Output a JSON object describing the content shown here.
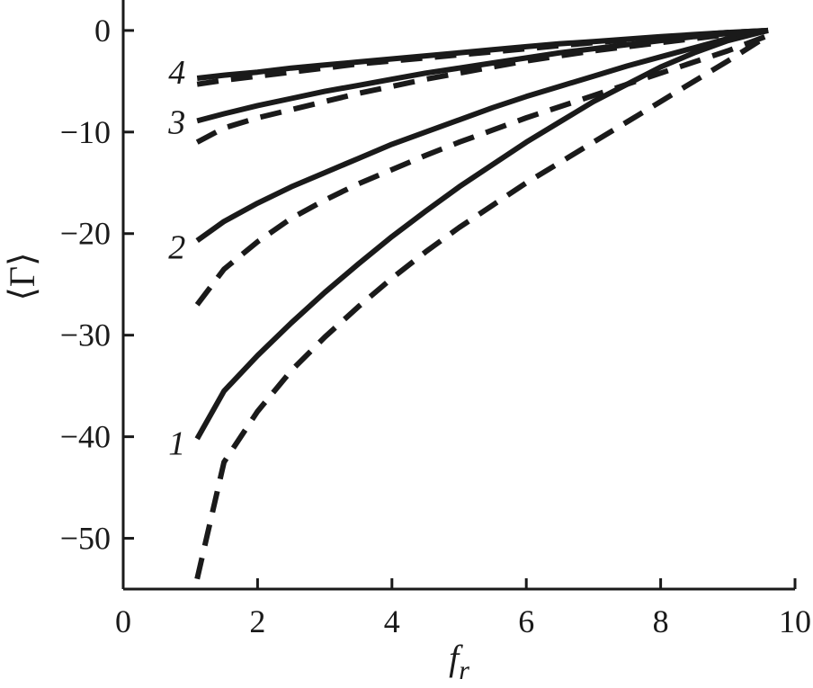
{
  "chart_data": {
    "type": "line",
    "xlabel": "f",
    "xlabel_sub": "r",
    "ylabel": "⟨Γ⟩",
    "xlim": [
      0,
      10
    ],
    "ylim": [
      -55,
      3
    ],
    "xticks": [
      "0",
      "2",
      "4",
      "6",
      "8",
      "10"
    ],
    "yticks": [
      "0",
      "−10",
      "−20",
      "−30",
      "−40",
      "−50"
    ],
    "x": [
      1.1,
      1.5,
      2,
      2.5,
      3,
      3.5,
      4,
      4.5,
      5,
      5.5,
      6,
      6.5,
      7,
      7.5,
      8,
      8.5,
      9,
      9.6
    ],
    "series": [
      {
        "name": "1",
        "style": "solid",
        "values": [
          -40.2,
          -35.5,
          -32,
          -28.8,
          -25.8,
          -23,
          -20.3,
          -17.8,
          -15.4,
          -13.2,
          -11,
          -9,
          -7,
          -5.3,
          -3.6,
          -2.2,
          -1.0,
          0
        ]
      },
      {
        "name": "1",
        "style": "dashed",
        "values": [
          -54,
          -42.5,
          -37.5,
          -33.5,
          -30.2,
          -27.2,
          -24.4,
          -21.8,
          -19.4,
          -17.2,
          -15,
          -13,
          -11,
          -9,
          -7,
          -5,
          -3,
          -0.5
        ]
      },
      {
        "name": "2",
        "style": "solid",
        "values": [
          -20.7,
          -18.8,
          -17,
          -15.4,
          -14,
          -12.6,
          -11.2,
          -10,
          -8.8,
          -7.6,
          -6.5,
          -5.5,
          -4.5,
          -3.5,
          -2.6,
          -1.7,
          -0.8,
          0
        ]
      },
      {
        "name": "2",
        "style": "dashed",
        "values": [
          -27,
          -23.5,
          -20.8,
          -18.5,
          -16.7,
          -15.1,
          -13.7,
          -12.3,
          -11,
          -9.8,
          -8.6,
          -7.5,
          -6.4,
          -5.3,
          -4.2,
          -3.1,
          -2,
          -0.5
        ]
      },
      {
        "name": "3",
        "style": "solid",
        "values": [
          -8.9,
          -8.2,
          -7.4,
          -6.7,
          -6.0,
          -5.4,
          -4.8,
          -4.2,
          -3.7,
          -3.2,
          -2.7,
          -2.2,
          -1.8,
          -1.4,
          -1.0,
          -0.6,
          -0.3,
          0
        ]
      },
      {
        "name": "3",
        "style": "dashed",
        "values": [
          -11,
          -9.6,
          -8.6,
          -7.8,
          -7.0,
          -6.2,
          -5.5,
          -4.8,
          -4.2,
          -3.6,
          -3.0,
          -2.5,
          -2.0,
          -1.6,
          -1.2,
          -0.8,
          -0.4,
          0
        ]
      },
      {
        "name": "4",
        "style": "solid",
        "values": [
          -4.7,
          -4.4,
          -4.1,
          -3.7,
          -3.4,
          -3.1,
          -2.8,
          -2.5,
          -2.2,
          -1.9,
          -1.6,
          -1.3,
          -1.1,
          -0.85,
          -0.6,
          -0.4,
          -0.2,
          0
        ]
      },
      {
        "name": "4",
        "style": "dashed",
        "values": [
          -5.3,
          -4.9,
          -4.5,
          -4.1,
          -3.7,
          -3.3,
          -3.0,
          -2.7,
          -2.4,
          -2.1,
          -1.8,
          -1.5,
          -1.2,
          -0.95,
          -0.7,
          -0.45,
          -0.2,
          0
        ]
      }
    ],
    "curve_labels": [
      {
        "text": "1",
        "x": 0.8,
        "y": -40.5
      },
      {
        "text": "2",
        "x": 0.8,
        "y": -21.2
      },
      {
        "text": "3",
        "x": 0.8,
        "y": -8.9
      },
      {
        "text": "4",
        "x": 0.8,
        "y": -4.0
      }
    ],
    "grid": false,
    "colors": {
      "line": "#1a1a1a",
      "axis": "#1a1a1a",
      "background": "#ffffff"
    }
  }
}
